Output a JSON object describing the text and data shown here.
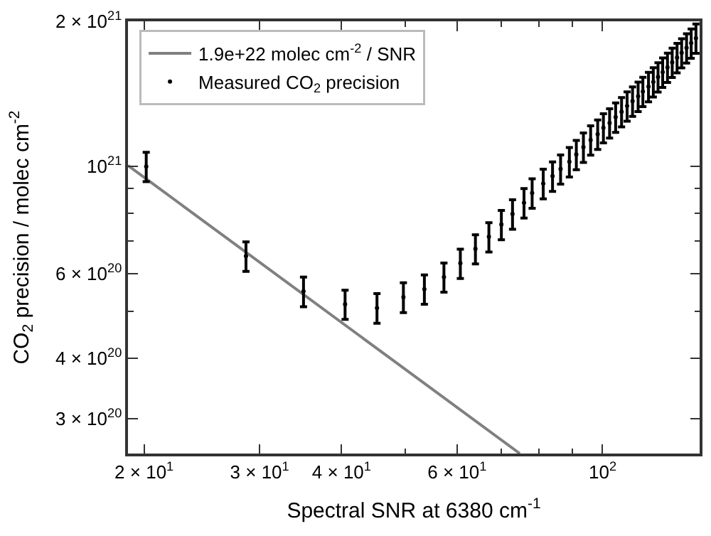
{
  "chart_data": {
    "type": "scatter",
    "xlabel": "Spectral SNR at 6380 cm$^{-1}$",
    "ylabel": "CO$_{2}$ precision / molec cm$^{-2}$",
    "series": [
      {
        "name": "1.9e+22 molec cm$^{-2}$ / SNR",
        "type": "line",
        "color": "#808080",
        "marker": "none",
        "line_style": "solid",
        "x": [
          18.9,
          74.8
        ],
        "values": [
          1.005e+21,
          2.54e+20
        ]
      },
      {
        "name": "Measured CO$_{2}$ precision",
        "color": "#000000",
        "marker": "circle",
        "x": [
          20.15,
          28.6,
          35.0,
          40.5,
          45.3,
          49.7,
          53.5,
          57.3,
          60.7,
          64.0,
          67.1,
          70.1,
          72.9,
          75.9,
          78.1,
          81.2,
          83.9,
          86.3,
          89.0,
          91.2,
          93.5,
          95.9,
          98.3,
          100.3,
          102.5,
          104.7,
          106.9,
          109.0,
          111.1,
          113.3,
          115.2,
          117.5,
          119.5,
          121.5,
          123.5,
          125.6,
          127.7,
          129.9,
          132.0,
          134.3,
          136.5,
          138.8
        ],
        "values": [
          1e+21,
          6.52e+20,
          5.51e+20,
          5.18e+20,
          5.09e+20,
          5.36e+20,
          5.57e+20,
          5.9e+20,
          6.3e+20,
          6.75e+20,
          7.15e+20,
          7.58e+20,
          7.97e+20,
          8.41e+20,
          8.81e+20,
          9.22e+20,
          9.55e+20,
          9.88e+20,
          1.023e+21,
          1.059e+21,
          1.097e+21,
          1.135e+21,
          1.167e+21,
          1.203e+21,
          1.231e+21,
          1.266e+21,
          1.299e+21,
          1.335e+21,
          1.366e+21,
          1.398e+21,
          1.431e+21,
          1.465e+21,
          1.498e+21,
          1.534e+21,
          1.569e+21,
          1.606e+21,
          1.644e+21,
          1.682e+21,
          1.721e+21,
          1.762e+21,
          1.803e+21,
          1.845e+21
        ],
        "errors": [
          7e+19,
          4.6e+19,
          3.9e+19,
          3.6e+19,
          3.6e+19,
          3.8e+19,
          3.9e+19,
          4.1e+19,
          4.4e+19,
          4.7e+19,
          5e+19,
          5.3e+19,
          5.6e+19,
          5.9e+19,
          6.2e+19,
          6.5e+19,
          6.7e+19,
          6.9e+19,
          7.2e+19,
          7.4e+19,
          7.7e+19,
          7.9e+19,
          8.2e+19,
          8.4e+19,
          8.6e+19,
          8.9e+19,
          9.1e+19,
          9.3e+19,
          9.6e+19,
          9.8e+19,
          1e+20,
          1.03e+20,
          1.05e+20,
          1.07e+20,
          1.1e+20,
          1.12e+20,
          1.15e+20,
          1.18e+20,
          1.2e+20,
          1.23e+20,
          1.26e+20,
          1.29e+20
        ]
      }
    ],
    "log": "xy",
    "xlim": [
      18.9,
      140.6
    ],
    "ylim": [
      2.54e+20,
      2e+21
    ],
    "xticks": [
      {
        "value": 20,
        "label": "2 × 10$^{1}$"
      },
      {
        "value": 30,
        "label": "3 × 10$^{1}$"
      },
      {
        "value": 40,
        "label": "4 × 10$^{1}$"
      },
      {
        "value": 50,
        "label": null
      },
      {
        "value": 60,
        "label": "6 × 10$^{1}$"
      },
      {
        "value": 70,
        "label": null
      },
      {
        "value": 80,
        "label": null
      },
      {
        "value": 90,
        "label": null
      },
      {
        "value": 100,
        "label": "10$^{2}$"
      }
    ],
    "yticks": [
      {
        "value": 3e+20,
        "label": "3 × 10$^{20}$"
      },
      {
        "value": 4e+20,
        "label": "4 × 10$^{20}$"
      },
      {
        "value": 5e+20,
        "label": null
      },
      {
        "value": 6e+20,
        "label": "6 × 10$^{20}$"
      },
      {
        "value": 7e+20,
        "label": null
      },
      {
        "value": 8e+20,
        "label": null
      },
      {
        "value": 9e+20,
        "label": null
      },
      {
        "value": 1e+21,
        "label": "10$^{21}$"
      },
      {
        "value": 2e+21,
        "label": "2 × 10$^{21}$"
      }
    ],
    "legend": "top left"
  }
}
